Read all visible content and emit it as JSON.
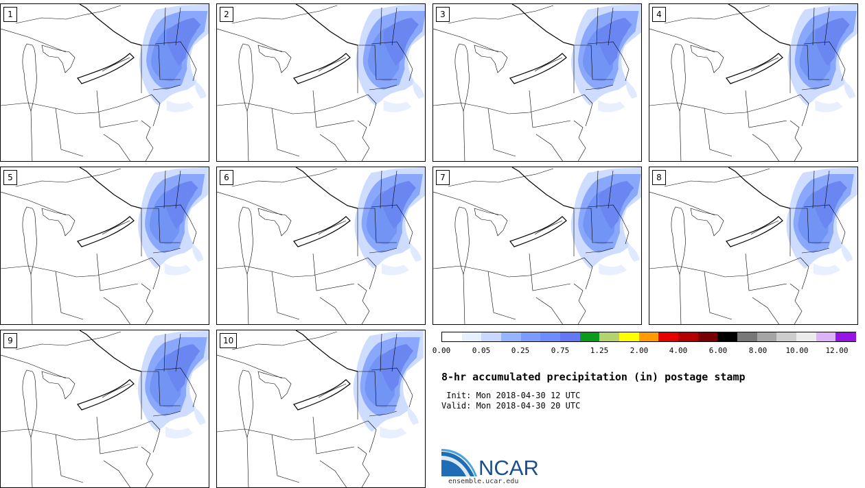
{
  "members": [
    "1",
    "2",
    "3",
    "4",
    "5",
    "6",
    "7",
    "8",
    "9",
    "10"
  ],
  "colorbar": {
    "colors": [
      "#ffffff",
      "#e6f0ff",
      "#c8d8ff",
      "#96b4ff",
      "#7d9bff",
      "#6e8cff",
      "#6478f5",
      "#0a9b1e",
      "#b4d26e",
      "#ffff00",
      "#ff9b00",
      "#e60000",
      "#b40000",
      "#780000",
      "#000000",
      "#787878",
      "#a5a5a5",
      "#cdcdcd",
      "#ebebeb",
      "#dcb4f5",
      "#9614e6"
    ],
    "tick_labels": [
      "0.00",
      "0.05",
      "0.25",
      "0.75",
      "1.25",
      "2.00",
      "4.00",
      "6.00",
      "8.00",
      "10.00",
      "12.00"
    ]
  },
  "title": "8-hr accumulated precipitation (in) postage stamp",
  "init_line": " Init: Mon 2018-04-30 12 UTC",
  "valid_line": "Valid: Mon 2018-04-30 20 UTC",
  "logo_text": "NCAR",
  "logo_url": "ensemble.ucar.edu"
}
